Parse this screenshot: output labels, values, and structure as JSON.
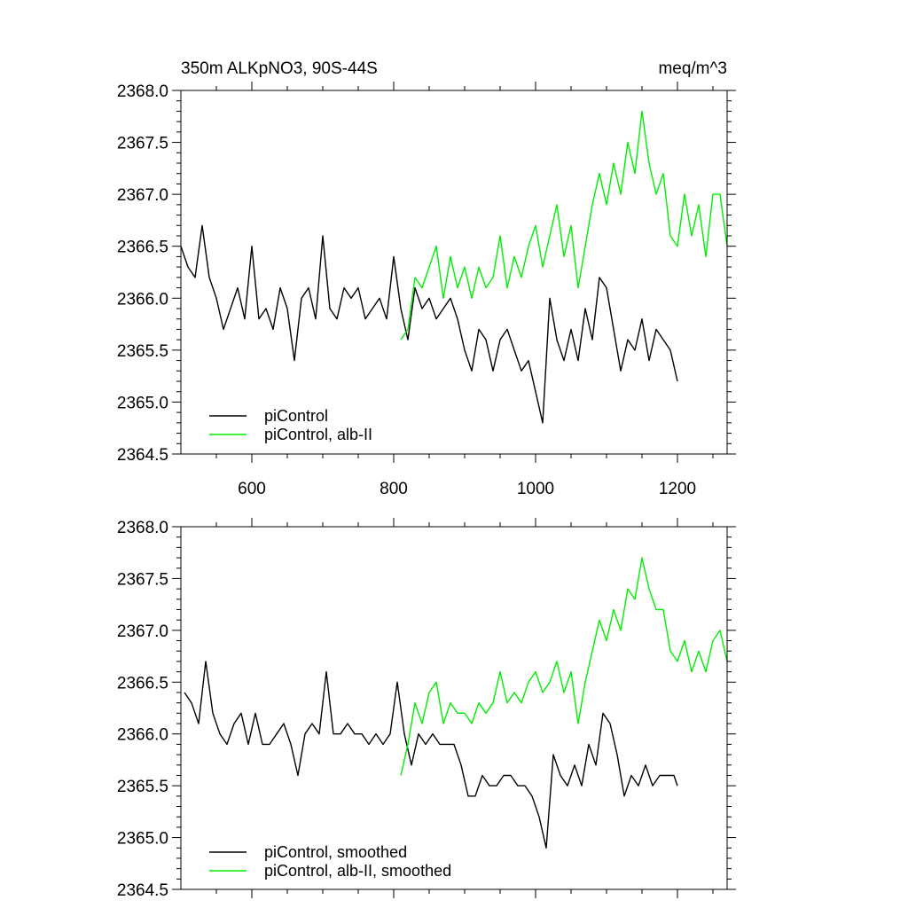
{
  "chart_data": [
    {
      "type": "line",
      "title": "350m ALKpNO3, 90S-44S",
      "units": "meq/m^3",
      "xlim": [
        500,
        1270
      ],
      "ylim": [
        2364.5,
        2368.0
      ],
      "x_ticks": [
        "600",
        "800",
        "1000",
        "1200"
      ],
      "x_tick_values": [
        600,
        800,
        1000,
        1200
      ],
      "y_ticks": [
        "2364.5",
        "2365.0",
        "2365.5",
        "2366.0",
        "2366.5",
        "2367.0",
        "2367.5",
        "2368.0"
      ],
      "y_tick_values": [
        2364.5,
        2365.0,
        2365.5,
        2366.0,
        2366.5,
        2367.0,
        2367.5,
        2368.0
      ],
      "legend_position": "bottom-left",
      "series": [
        {
          "name": "piControl",
          "color": "#000000",
          "x": [
            500,
            510,
            520,
            530,
            540,
            550,
            560,
            570,
            580,
            590,
            600,
            610,
            620,
            630,
            640,
            650,
            660,
            670,
            680,
            690,
            700,
            710,
            720,
            730,
            740,
            750,
            760,
            770,
            780,
            790,
            800,
            810,
            820,
            830,
            840,
            850,
            860,
            870,
            880,
            890,
            900,
            910,
            920,
            930,
            940,
            950,
            960,
            970,
            980,
            990,
            1000,
            1010,
            1020,
            1030,
            1040,
            1050,
            1060,
            1070,
            1080,
            1090,
            1100,
            1110,
            1120,
            1130,
            1140,
            1150,
            1160,
            1170,
            1180,
            1190,
            1200
          ],
          "y": [
            2366.5,
            2366.3,
            2366.2,
            2366.7,
            2366.2,
            2366.0,
            2365.7,
            2365.9,
            2366.1,
            2365.8,
            2366.5,
            2365.8,
            2365.9,
            2365.7,
            2366.1,
            2365.9,
            2365.4,
            2366.0,
            2366.1,
            2365.8,
            2366.6,
            2365.9,
            2365.8,
            2366.1,
            2366.0,
            2366.1,
            2365.8,
            2365.9,
            2366.0,
            2365.8,
            2366.4,
            2365.9,
            2365.6,
            2366.1,
            2365.9,
            2366.0,
            2365.8,
            2365.9,
            2366.0,
            2365.8,
            2365.5,
            2365.3,
            2365.7,
            2365.6,
            2365.3,
            2365.6,
            2365.7,
            2365.5,
            2365.3,
            2365.4,
            2365.1,
            2364.8,
            2366.0,
            2365.6,
            2365.4,
            2365.7,
            2365.4,
            2365.9,
            2365.6,
            2366.2,
            2366.1,
            2365.7,
            2365.3,
            2365.6,
            2365.5,
            2365.8,
            2365.4,
            2365.7,
            2365.6,
            2365.5,
            2365.2
          ]
        },
        {
          "name": "piControl, alb-II",
          "color": "#00ee00",
          "x": [
            810,
            820,
            830,
            840,
            850,
            860,
            870,
            880,
            890,
            900,
            910,
            920,
            930,
            940,
            950,
            960,
            970,
            980,
            990,
            1000,
            1010,
            1020,
            1030,
            1040,
            1050,
            1060,
            1070,
            1080,
            1090,
            1100,
            1110,
            1120,
            1130,
            1140,
            1150,
            1160,
            1170,
            1180,
            1190,
            1200,
            1210,
            1220,
            1230,
            1240,
            1250,
            1260,
            1270
          ],
          "y": [
            2365.6,
            2365.7,
            2366.2,
            2366.1,
            2366.3,
            2366.5,
            2366.0,
            2366.4,
            2366.1,
            2366.3,
            2366.0,
            2366.3,
            2366.1,
            2366.2,
            2366.6,
            2366.1,
            2366.4,
            2366.2,
            2366.5,
            2366.7,
            2366.3,
            2366.6,
            2366.9,
            2366.4,
            2366.7,
            2366.1,
            2366.5,
            2366.9,
            2367.2,
            2366.9,
            2367.3,
            2367.0,
            2367.5,
            2367.2,
            2367.8,
            2367.3,
            2367.0,
            2367.2,
            2366.6,
            2366.5,
            2367.0,
            2366.6,
            2366.9,
            2366.4,
            2367.0,
            2367.0,
            2366.5
          ]
        }
      ]
    },
    {
      "type": "line",
      "xlim": [
        500,
        1270
      ],
      "ylim": [
        2364.5,
        2368.0
      ],
      "y_ticks": [
        "2364.5",
        "2365.0",
        "2365.5",
        "2366.0",
        "2366.5",
        "2367.0",
        "2367.5",
        "2368.0"
      ],
      "y_tick_values": [
        2364.5,
        2365.0,
        2365.5,
        2366.0,
        2366.5,
        2367.0,
        2367.5,
        2368.0
      ],
      "legend_position": "bottom-left",
      "series": [
        {
          "name": "piControl, smoothed",
          "color": "#000000",
          "x": [
            505,
            515,
            525,
            535,
            545,
            555,
            565,
            575,
            585,
            595,
            605,
            615,
            625,
            635,
            645,
            655,
            665,
            675,
            685,
            695,
            705,
            715,
            725,
            735,
            745,
            755,
            765,
            775,
            785,
            795,
            805,
            815,
            825,
            835,
            845,
            855,
            865,
            875,
            885,
            895,
            905,
            915,
            925,
            935,
            945,
            955,
            965,
            975,
            985,
            995,
            1005,
            1015,
            1025,
            1035,
            1045,
            1055,
            1065,
            1075,
            1085,
            1095,
            1105,
            1115,
            1125,
            1135,
            1145,
            1155,
            1165,
            1175,
            1185,
            1195,
            1200
          ],
          "y": [
            2366.4,
            2366.3,
            2366.1,
            2366.7,
            2366.2,
            2366.0,
            2365.9,
            2366.1,
            2366.2,
            2365.9,
            2366.2,
            2365.9,
            2365.9,
            2366.0,
            2366.1,
            2365.9,
            2365.6,
            2366.0,
            2366.1,
            2366.0,
            2366.6,
            2366.0,
            2366.0,
            2366.1,
            2366.0,
            2366.0,
            2365.9,
            2366.0,
            2365.9,
            2366.0,
            2366.5,
            2366.0,
            2365.7,
            2366.0,
            2365.9,
            2366.0,
            2365.9,
            2365.9,
            2365.9,
            2365.7,
            2365.4,
            2365.4,
            2365.6,
            2365.5,
            2365.5,
            2365.6,
            2365.6,
            2365.5,
            2365.5,
            2365.4,
            2365.2,
            2364.9,
            2365.8,
            2365.6,
            2365.5,
            2365.7,
            2365.5,
            2365.9,
            2365.7,
            2366.2,
            2366.1,
            2365.8,
            2365.4,
            2365.6,
            2365.5,
            2365.7,
            2365.5,
            2365.6,
            2365.6,
            2365.6,
            2365.5
          ]
        },
        {
          "name": "piControl, alb-II, smoothed",
          "color": "#00ee00",
          "x": [
            810,
            820,
            830,
            840,
            850,
            860,
            870,
            880,
            890,
            900,
            910,
            920,
            930,
            940,
            950,
            960,
            970,
            980,
            990,
            1000,
            1010,
            1020,
            1030,
            1040,
            1050,
            1060,
            1070,
            1080,
            1090,
            1100,
            1110,
            1120,
            1130,
            1140,
            1150,
            1160,
            1170,
            1180,
            1190,
            1200,
            1210,
            1220,
            1230,
            1240,
            1250,
            1260,
            1270
          ],
          "y": [
            2365.6,
            2365.9,
            2366.3,
            2366.1,
            2366.4,
            2366.5,
            2366.1,
            2366.3,
            2366.2,
            2366.2,
            2366.1,
            2366.3,
            2366.2,
            2366.3,
            2366.6,
            2366.3,
            2366.4,
            2366.3,
            2366.5,
            2366.6,
            2366.4,
            2366.5,
            2366.7,
            2366.4,
            2366.6,
            2366.1,
            2366.5,
            2366.8,
            2367.1,
            2366.9,
            2367.2,
            2367.0,
            2367.4,
            2367.3,
            2367.7,
            2367.4,
            2367.2,
            2367.2,
            2366.8,
            2366.7,
            2366.9,
            2366.6,
            2366.8,
            2366.6,
            2366.9,
            2367.0,
            2366.7
          ]
        }
      ]
    }
  ]
}
